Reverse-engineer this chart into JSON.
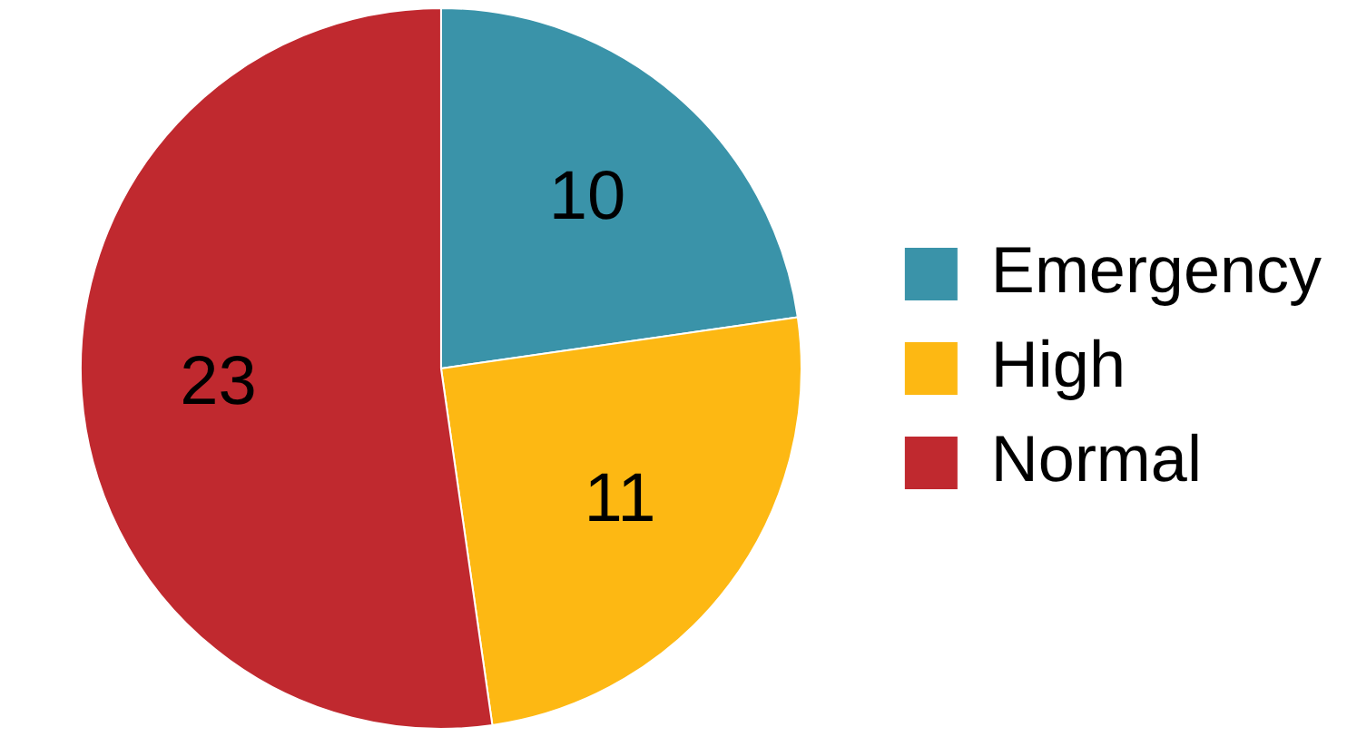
{
  "chart_data": {
    "type": "pie",
    "categories": [
      "Emergency",
      "High",
      "Normal"
    ],
    "values": [
      10,
      11,
      23
    ],
    "colors": [
      "#3a93a9",
      "#fdb813",
      "#c0292f"
    ],
    "data_labels": true,
    "legend": "right"
  }
}
